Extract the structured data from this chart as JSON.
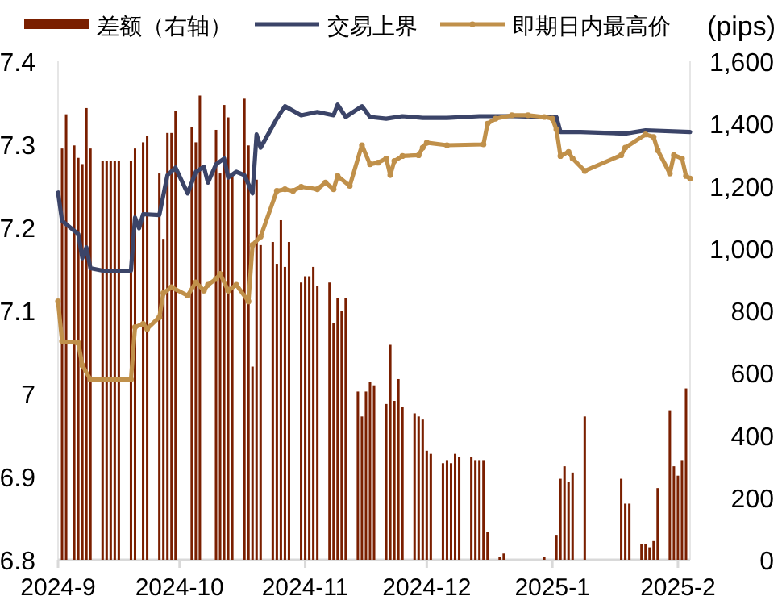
{
  "chart_data": {
    "type": "bar",
    "legend": "top",
    "y2label": "(pips)",
    "xlim": [
      "2024-09-01",
      "2025-02-04"
    ],
    "xticks": [
      {
        "value": "2024-09-01",
        "label": "2024-9"
      },
      {
        "value": "2024-10-01",
        "label": "2024-10"
      },
      {
        "value": "2024-11-01",
        "label": "2024-11"
      },
      {
        "value": "2024-12-01",
        "label": "2024-12"
      },
      {
        "value": "2025-01-01",
        "label": "2025-1"
      },
      {
        "value": "2025-02-01",
        "label": "2025-2"
      }
    ],
    "ylim": [
      6.8,
      7.4
    ],
    "yticks": [
      6.8,
      6.9,
      7,
      7.1,
      7.2,
      7.3,
      7.4
    ],
    "y2lim": [
      0,
      1600
    ],
    "y2ticks": [
      0,
      200,
      400,
      600,
      800,
      {
        "value": 1000,
        "label": "1,000"
      },
      {
        "value": 1200,
        "label": "1,200"
      },
      {
        "value": 1400,
        "label": "1,400"
      },
      {
        "value": 1600,
        "label": "1,600"
      }
    ],
    "series": [
      {
        "name": "差额（右轴）",
        "axis": "y2",
        "color": "#7a1f00",
        "x": [
          "2024-09-02",
          "2024-09-03",
          "2024-09-05",
          "2024-09-06",
          "2024-09-07",
          "2024-09-08",
          "2024-09-09",
          "2024-09-12",
          "2024-09-13",
          "2024-09-14",
          "2024-09-15",
          "2024-09-16",
          "2024-09-19",
          "2024-09-20",
          "2024-09-22",
          "2024-09-23",
          "2024-09-26",
          "2024-09-27",
          "2024-09-28",
          "2024-09-29",
          "2024-09-30",
          "2024-10-04",
          "2024-10-05",
          "2024-10-06",
          "2024-10-10",
          "2024-10-11",
          "2024-10-12",
          "2024-10-13",
          "2024-10-14",
          "2024-10-17",
          "2024-10-18",
          "2024-10-19",
          "2024-10-20",
          "2024-10-21",
          "2024-10-24",
          "2024-10-25",
          "2024-10-26",
          "2024-10-27",
          "2024-10-28",
          "2024-10-31",
          "2024-11-01",
          "2024-11-02",
          "2024-11-03",
          "2024-11-04",
          "2024-11-07",
          "2024-11-08",
          "2024-11-09",
          "2024-11-10",
          "2024-11-11",
          "2024-11-14",
          "2024-11-15",
          "2024-11-16",
          "2024-11-17",
          "2024-11-18",
          "2024-11-21",
          "2024-11-22",
          "2024-11-23",
          "2024-11-24",
          "2024-11-25",
          "2024-11-28",
          "2024-11-29",
          "2024-11-30",
          "2024-12-01",
          "2024-12-02",
          "2024-12-05",
          "2024-12-06",
          "2024-12-07",
          "2024-12-08",
          "2024-12-09",
          "2024-12-12",
          "2024-12-13",
          "2024-12-14",
          "2024-12-15",
          "2024-12-16",
          "2024-12-19",
          "2024-12-20",
          "2024-12-30",
          "2025-01-02",
          "2025-01-03",
          "2025-01-04",
          "2025-01-05",
          "2025-01-06",
          "2025-01-09",
          "2025-01-18",
          "2025-01-19",
          "2025-01-20",
          "2025-01-23",
          "2025-01-24",
          "2025-01-25",
          "2025-01-26",
          "2025-01-27",
          "2025-01-30",
          "2025-01-31",
          "2025-02-01",
          "2025-02-02",
          "2025-02-03"
        ],
        "values": [
          1320,
          1430,
          1330,
          1290,
          1270,
          1450,
          1320,
          1280,
          1280,
          1280,
          1280,
          1280,
          1280,
          1320,
          1340,
          1360,
          1240,
          1030,
          1370,
          1370,
          1440,
          1390,
          1340,
          1490,
          1380,
          1240,
          1460,
          1420,
          1240,
          1480,
          1330,
          620,
          1220,
          1010,
          1020,
          950,
          1090,
          940,
          1020,
          890,
          910,
          910,
          940,
          880,
          890,
          760,
          840,
          800,
          840,
          540,
          460,
          540,
          570,
          560,
          500,
          690,
          510,
          580,
          490,
          470,
          460,
          450,
          350,
          340,
          310,
          320,
          310,
          340,
          330,
          330,
          320,
          320,
          320,
          90,
          10,
          20,
          10,
          80,
          260,
          300,
          250,
          280,
          460,
          260,
          180,
          180,
          50,
          50,
          40,
          60,
          230,
          480,
          300,
          270,
          320,
          550
        ]
      },
      {
        "name": "交易上界",
        "type": "line",
        "axis": "y",
        "color": "#3b4468",
        "x": [
          "2024-09-01",
          "2024-09-02",
          "2024-09-06",
          "2024-09-07",
          "2024-09-08",
          "2024-09-09",
          "2024-09-12",
          "2024-09-19",
          "2024-09-20",
          "2024-09-21",
          "2024-09-22",
          "2024-09-26",
          "2024-09-28",
          "2024-09-30",
          "2024-10-03",
          "2024-10-05",
          "2024-10-07",
          "2024-10-08",
          "2024-10-10",
          "2024-10-12",
          "2024-10-13",
          "2024-10-15",
          "2024-10-17",
          "2024-10-19",
          "2024-10-20",
          "2024-10-21",
          "2024-10-25",
          "2024-10-27",
          "2024-10-31",
          "2024-11-04",
          "2024-11-08",
          "2024-11-09",
          "2024-11-11",
          "2024-11-15",
          "2024-11-17",
          "2024-11-21",
          "2024-11-25",
          "2024-11-30",
          "2024-12-06",
          "2024-12-14",
          "2024-12-22",
          "2024-12-29",
          "2025-01-02",
          "2025-01-03",
          "2025-01-08",
          "2025-01-19",
          "2025-01-24",
          "2025-02-04"
        ],
        "values": [
          7.242,
          7.208,
          7.192,
          7.163,
          7.176,
          7.151,
          7.148,
          7.148,
          7.212,
          7.199,
          7.216,
          7.215,
          7.263,
          7.272,
          7.241,
          7.267,
          7.273,
          7.254,
          7.276,
          7.283,
          7.26,
          7.267,
          7.263,
          7.241,
          7.312,
          7.296,
          7.331,
          7.346,
          7.335,
          7.339,
          7.335,
          7.348,
          7.333,
          7.346,
          7.333,
          7.331,
          7.334,
          7.332,
          7.332,
          7.334,
          7.334,
          7.333,
          7.333,
          7.315,
          7.315,
          7.313,
          7.317,
          7.315
        ]
      },
      {
        "name": "即期日内最高价",
        "type": "line",
        "axis": "y",
        "color": "#c0904a",
        "marker": "circle",
        "x": [
          "2024-09-01",
          "2024-09-02",
          "2024-09-06",
          "2024-09-07",
          "2024-09-09",
          "2024-09-19",
          "2024-09-20",
          "2024-09-22",
          "2024-09-23",
          "2024-09-26",
          "2024-09-27",
          "2024-09-29",
          "2024-10-03",
          "2024-10-05",
          "2024-10-07",
          "2024-10-08",
          "2024-10-10",
          "2024-10-11",
          "2024-10-13",
          "2024-10-15",
          "2024-10-18",
          "2024-10-19",
          "2024-10-21",
          "2024-10-25",
          "2024-10-27",
          "2024-10-29",
          "2024-10-31",
          "2024-11-04",
          "2024-11-06",
          "2024-11-08",
          "2024-11-09",
          "2024-11-12",
          "2024-11-15",
          "2024-11-17",
          "2024-11-19",
          "2024-11-21",
          "2024-11-22",
          "2024-11-23",
          "2024-11-25",
          "2024-11-29",
          "2024-11-30",
          "2024-12-01",
          "2024-12-06",
          "2024-12-15",
          "2024-12-16",
          "2024-12-18",
          "2024-12-22",
          "2024-12-26",
          "2024-12-30",
          "2025-01-01",
          "2025-01-02",
          "2025-01-03",
          "2025-01-05",
          "2025-01-06",
          "2025-01-09",
          "2025-01-18",
          "2025-01-19",
          "2025-01-24",
          "2025-01-26",
          "2025-01-27",
          "2025-01-30",
          "2025-01-31",
          "2025-02-02",
          "2025-02-03",
          "2025-02-04"
        ],
        "values": [
          7.111,
          7.063,
          7.061,
          7.034,
          7.017,
          7.017,
          7.08,
          7.084,
          7.078,
          7.092,
          7.121,
          7.128,
          7.118,
          7.134,
          7.124,
          7.131,
          7.138,
          7.144,
          7.124,
          7.131,
          7.111,
          7.179,
          7.189,
          7.244,
          7.246,
          7.244,
          7.249,
          7.246,
          7.254,
          7.246,
          7.262,
          7.25,
          7.299,
          7.276,
          7.278,
          7.283,
          7.263,
          7.28,
          7.286,
          7.287,
          7.296,
          7.302,
          7.299,
          7.3,
          7.325,
          7.331,
          7.335,
          7.335,
          7.333,
          7.331,
          7.318,
          7.286,
          7.291,
          7.283,
          7.268,
          7.287,
          7.296,
          7.312,
          7.309,
          7.293,
          7.265,
          7.287,
          7.283,
          7.262,
          7.259
        ]
      }
    ]
  }
}
